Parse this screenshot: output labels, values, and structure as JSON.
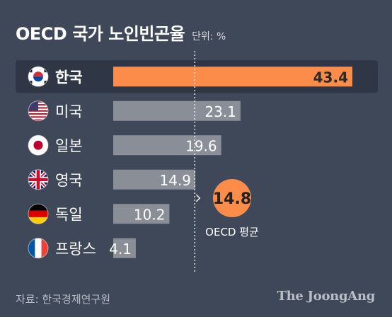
{
  "title": "OECD 국가 노인빈곤율",
  "unit": "단위: %",
  "source": "자료: 한국경제연구원",
  "brand": "The JoongAng",
  "colors": {
    "background": "#3f4858",
    "highlight_row": "#2f3645",
    "highlight_bar": "#fb8c4a",
    "bar": "#8a8f97",
    "average_line": "#ffffff",
    "average_circle": "#fb8c4a"
  },
  "chart_data": {
    "type": "bar",
    "orientation": "horizontal",
    "title": "OECD 국가 노인빈곤율",
    "categories": [
      "한국",
      "미국",
      "일본",
      "영국",
      "독일",
      "프랑스"
    ],
    "flags": [
      "korea-flag-icon",
      "us-flag-icon",
      "japan-flag-icon",
      "uk-flag-icon",
      "germany-flag-icon",
      "france-flag-icon"
    ],
    "values": [
      43.4,
      23.1,
      19.6,
      14.9,
      10.2,
      4.1
    ],
    "value_labels": [
      "43.4",
      "23.1",
      "19.6",
      "14.9",
      "10.2",
      "4.1"
    ],
    "highlight": "한국",
    "xlim": [
      0,
      43.4
    ],
    "grid": false,
    "reference_line": {
      "value": 14.8,
      "value_label": "14.8",
      "label": "OECD 평균"
    }
  }
}
